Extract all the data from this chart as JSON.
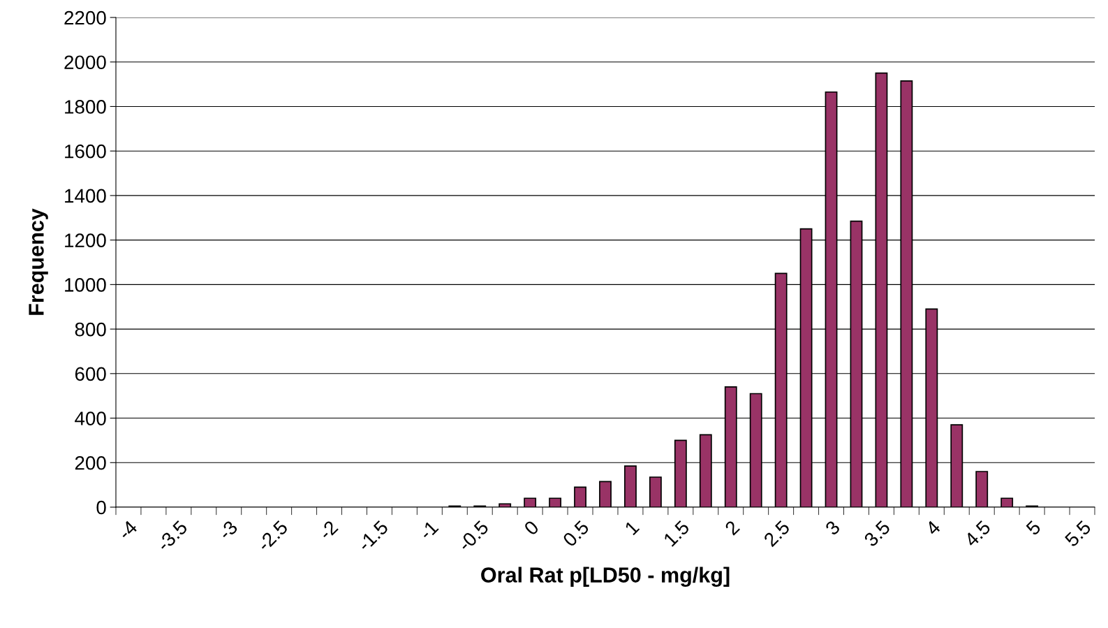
{
  "chart_data": {
    "type": "bar",
    "xlabel": "Oral Rat p[LD50 - mg/kg]",
    "ylabel": "Frequency",
    "categories": [
      "-4",
      null,
      "-3.5",
      null,
      "-3",
      null,
      "-2.5",
      null,
      "-2",
      null,
      "-1.5",
      null,
      "-1",
      null,
      "-0.5",
      null,
      "0",
      null,
      "0.5",
      null,
      "1",
      null,
      "1.5",
      null,
      "2",
      null,
      "2.5",
      null,
      "3",
      null,
      "3.5",
      null,
      "4",
      null,
      "4.5",
      null,
      "5",
      null,
      "5.5"
    ],
    "values": [
      0,
      0,
      0,
      0,
      0,
      0,
      0,
      0,
      0,
      0,
      0,
      0,
      0,
      5,
      5,
      15,
      40,
      40,
      90,
      115,
      185,
      135,
      300,
      325,
      540,
      510,
      1050,
      1250,
      1865,
      1285,
      1950,
      1915,
      890,
      370,
      160,
      40,
      5,
      0,
      0
    ],
    "color": "#993366",
    "ylim": [
      0,
      2200
    ],
    "yticks": [
      0,
      200,
      400,
      600,
      800,
      1000,
      1200,
      1400,
      1600,
      1800,
      2000,
      2200
    ],
    "grid": "y"
  }
}
